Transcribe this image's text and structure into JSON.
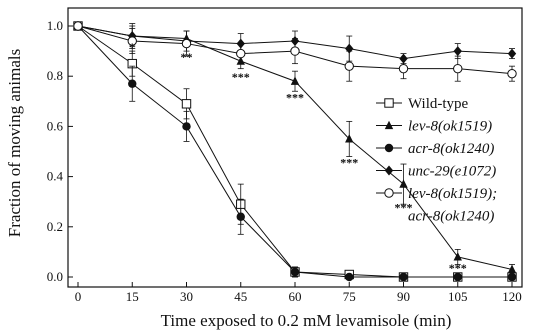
{
  "chart_data": {
    "type": "line",
    "title": "",
    "xlabel": "Time exposed to 0.2 mM levamisole (min)",
    "ylabel": "Fraction of moving animals",
    "x": [
      0,
      15,
      30,
      45,
      60,
      75,
      90,
      105,
      120
    ],
    "xticks": [
      "0",
      "15",
      "30",
      "45",
      "60",
      "75",
      "90",
      "105",
      "120"
    ],
    "yticks": [
      "0.0",
      "0.2",
      "0.4",
      "0.6",
      "0.8",
      "1.0"
    ],
    "xlim": [
      0,
      120
    ],
    "ylim": [
      0,
      1.0
    ],
    "grid": false,
    "legend_position": "right",
    "series": [
      {
        "name": "Wild-type",
        "italic": false,
        "marker": "open-square",
        "values": [
          1.0,
          0.85,
          0.69,
          0.29,
          0.02,
          0.01,
          0.0,
          0.0,
          0.0
        ],
        "errors": [
          0.01,
          0.05,
          0.06,
          0.08,
          0.02,
          0.01,
          0.01,
          0.0,
          0.0
        ]
      },
      {
        "name": "lev-8(ok1519)",
        "italic": true,
        "marker": "filled-triangle",
        "values": [
          1.0,
          0.96,
          0.95,
          0.86,
          0.78,
          0.55,
          0.37,
          0.08,
          0.03
        ],
        "errors": [
          0.01,
          0.04,
          0.03,
          0.03,
          0.04,
          0.07,
          0.08,
          0.03,
          0.02
        ]
      },
      {
        "name": "acr-8(ok1240)",
        "italic": true,
        "marker": "filled-circle",
        "values": [
          1.0,
          0.77,
          0.6,
          0.24,
          0.02,
          0.0,
          0.0,
          0.0,
          0.0
        ],
        "errors": [
          0.01,
          0.07,
          0.06,
          0.07,
          0.02,
          0.01,
          0.0,
          0.0,
          0.0
        ]
      },
      {
        "name": "unc-29(e1072)",
        "italic": true,
        "marker": "filled-diamond",
        "values": [
          1.0,
          0.96,
          0.94,
          0.93,
          0.94,
          0.91,
          0.87,
          0.9,
          0.89
        ],
        "errors": [
          0.01,
          0.05,
          0.04,
          0.04,
          0.04,
          0.05,
          0.02,
          0.03,
          0.02
        ]
      },
      {
        "name": "lev-8(ok1519); acr-8(ok1240)",
        "name_lines": [
          "lev-8(ok1519);",
          "acr-8(ok1240)"
        ],
        "italic": true,
        "marker": "open-circle",
        "values": [
          1.0,
          0.94,
          0.93,
          0.89,
          0.9,
          0.84,
          0.83,
          0.83,
          0.81
        ],
        "errors": [
          0.01,
          0.05,
          0.05,
          0.04,
          0.05,
          0.06,
          0.04,
          0.05,
          0.03
        ]
      }
    ],
    "annotations": [
      {
        "x": 15,
        "y": 0.9,
        "text": "*"
      },
      {
        "x": 30,
        "y": 0.86,
        "text": "**"
      },
      {
        "x": 45,
        "y": 0.78,
        "text": "***"
      },
      {
        "x": 60,
        "y": 0.7,
        "text": "***"
      },
      {
        "x": 75,
        "y": 0.44,
        "text": "***"
      },
      {
        "x": 90,
        "y": 0.26,
        "text": "***"
      },
      {
        "x": 105,
        "y": 0.02,
        "text": "***"
      }
    ]
  }
}
